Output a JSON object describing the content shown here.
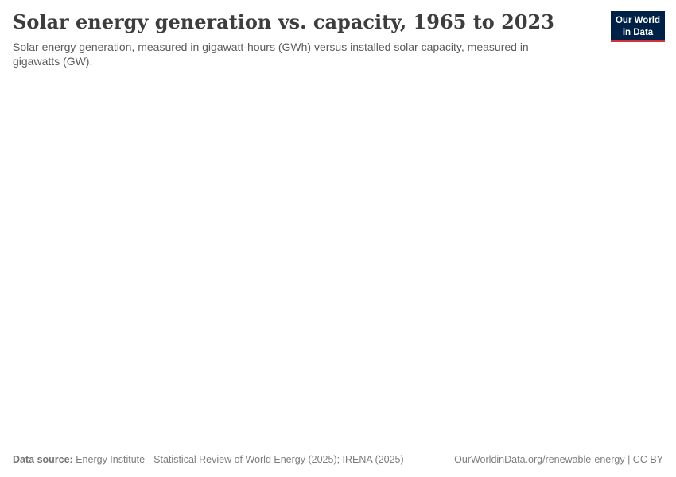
{
  "header": {
    "title": "Solar energy generation vs. capacity, 1965 to 2023",
    "subtitle": "Solar energy generation, measured in gigawatt-hours (GWh) versus installed solar capacity, measured in gigawatts (GW)."
  },
  "logo": {
    "line1": "Our World",
    "line2": "in Data",
    "background_color": "#002147",
    "accent_color": "#d13239",
    "text_color": "#ffffff"
  },
  "footer": {
    "source_label": "Data source:",
    "source_text": "Energy Institute - Statistical Review of World Energy (2025); IRENA (2025)",
    "credit": "OurWorldinData.org/renewable-energy | CC BY"
  },
  "colors": {
    "title_text": "#3d3d3d",
    "subtitle_text": "#5b5b5b",
    "footer_text": "#787878",
    "background": "#ffffff"
  },
  "chart_data": {
    "type": "line",
    "title": "Solar energy generation vs. capacity, 1965 to 2023",
    "subtitle": "Solar energy generation, measured in gigawatt-hours (GWh) versus installed solar capacity, measured in gigawatts (GW).",
    "x_range": [
      1965,
      2023
    ],
    "series": [],
    "plot_area_rendered": false
  }
}
